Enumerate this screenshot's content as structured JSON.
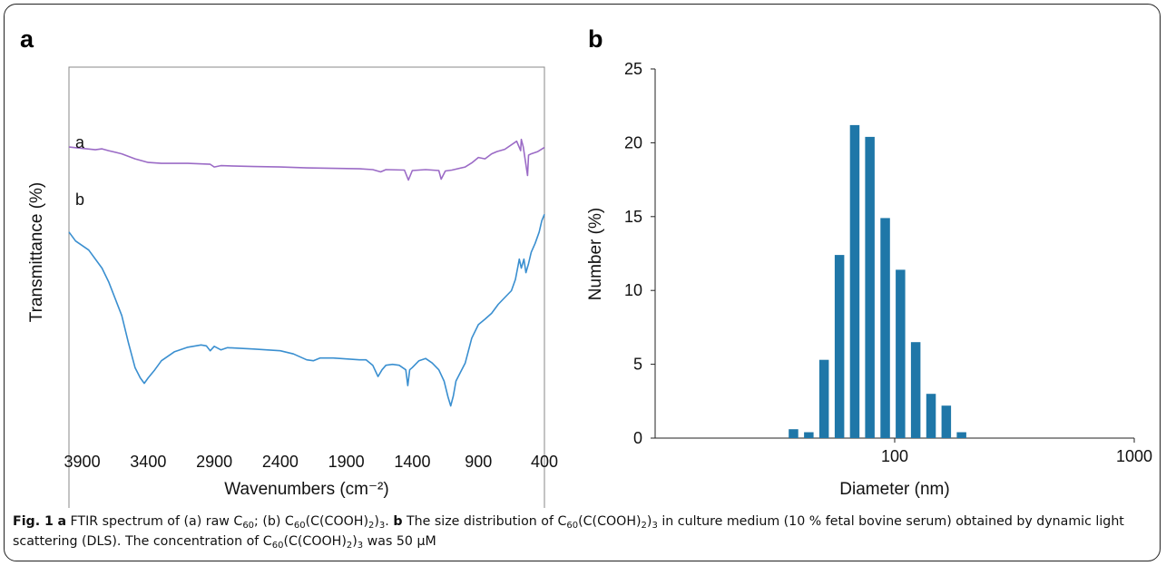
{
  "chart_data": [
    {
      "panel": "a",
      "type": "line",
      "xlabel": "Wavenumbers (cm⁻²)",
      "ylabel": "Transmittance (%)",
      "xlim": [
        4000,
        400
      ],
      "x_reversed": true,
      "x_ticks": [
        3900,
        3400,
        2900,
        2400,
        1900,
        1400,
        900,
        400
      ],
      "y_tick_labels": false,
      "grid": false,
      "series": [
        {
          "name": "a",
          "color": "#9b6bc6",
          "points": [
            [
              4000,
              0.823
            ],
            [
              3900,
              0.82
            ],
            [
              3800,
              0.817
            ],
            [
              3750,
              0.819
            ],
            [
              3700,
              0.815
            ],
            [
              3600,
              0.808
            ],
            [
              3500,
              0.797
            ],
            [
              3400,
              0.789
            ],
            [
              3300,
              0.787
            ],
            [
              3100,
              0.787
            ],
            [
              2930,
              0.785
            ],
            [
              2900,
              0.779
            ],
            [
              2850,
              0.782
            ],
            [
              2600,
              0.78
            ],
            [
              2400,
              0.779
            ],
            [
              2200,
              0.777
            ],
            [
              2000,
              0.776
            ],
            [
              1800,
              0.775
            ],
            [
              1700,
              0.773
            ],
            [
              1640,
              0.768
            ],
            [
              1600,
              0.773
            ],
            [
              1460,
              0.772
            ],
            [
              1430,
              0.75
            ],
            [
              1400,
              0.771
            ],
            [
              1300,
              0.773
            ],
            [
              1200,
              0.771
            ],
            [
              1182,
              0.752
            ],
            [
              1150,
              0.77
            ],
            [
              1100,
              0.772
            ],
            [
              1000,
              0.779
            ],
            [
              950,
              0.788
            ],
            [
              900,
              0.8
            ],
            [
              850,
              0.797
            ],
            [
              800,
              0.808
            ],
            [
              760,
              0.813
            ],
            [
              700,
              0.818
            ],
            [
              610,
              0.836
            ],
            [
              580,
              0.815
            ],
            [
              575,
              0.84
            ],
            [
              560,
              0.823
            ],
            [
              528,
              0.76
            ],
            [
              520,
              0.805
            ],
            [
              500,
              0.808
            ],
            [
              450,
              0.813
            ],
            [
              400,
              0.822
            ]
          ]
        },
        {
          "name": "b",
          "color": "#3a8fd0",
          "points": [
            [
              4000,
              0.635
            ],
            [
              3950,
              0.615
            ],
            [
              3850,
              0.595
            ],
            [
              3750,
              0.555
            ],
            [
              3700,
              0.525
            ],
            [
              3600,
              0.45
            ],
            [
              3550,
              0.39
            ],
            [
              3500,
              0.335
            ],
            [
              3460,
              0.312
            ],
            [
              3430,
              0.3
            ],
            [
              3400,
              0.312
            ],
            [
              3350,
              0.33
            ],
            [
              3300,
              0.35
            ],
            [
              3200,
              0.37
            ],
            [
              3100,
              0.38
            ],
            [
              3000,
              0.385
            ],
            [
              2960,
              0.383
            ],
            [
              2930,
              0.372
            ],
            [
              2900,
              0.382
            ],
            [
              2850,
              0.374
            ],
            [
              2800,
              0.379
            ],
            [
              2600,
              0.376
            ],
            [
              2400,
              0.372
            ],
            [
              2300,
              0.365
            ],
            [
              2200,
              0.352
            ],
            [
              2150,
              0.35
            ],
            [
              2100,
              0.356
            ],
            [
              2000,
              0.356
            ],
            [
              1900,
              0.354
            ],
            [
              1800,
              0.352
            ],
            [
              1750,
              0.352
            ],
            [
              1700,
              0.34
            ],
            [
              1660,
              0.315
            ],
            [
              1630,
              0.33
            ],
            [
              1600,
              0.34
            ],
            [
              1550,
              0.342
            ],
            [
              1500,
              0.34
            ],
            [
              1450,
              0.33
            ],
            [
              1435,
              0.295
            ],
            [
              1420,
              0.33
            ],
            [
              1400,
              0.335
            ],
            [
              1350,
              0.35
            ],
            [
              1300,
              0.355
            ],
            [
              1250,
              0.345
            ],
            [
              1200,
              0.33
            ],
            [
              1160,
              0.305
            ],
            [
              1130,
              0.27
            ],
            [
              1110,
              0.25
            ],
            [
              1090,
              0.272
            ],
            [
              1070,
              0.305
            ],
            [
              1000,
              0.345
            ],
            [
              950,
              0.4
            ],
            [
              900,
              0.43
            ],
            [
              850,
              0.442
            ],
            [
              800,
              0.455
            ],
            [
              750,
              0.475
            ],
            [
              700,
              0.49
            ],
            [
              650,
              0.505
            ],
            [
              620,
              0.53
            ],
            [
              600,
              0.56
            ],
            [
              590,
              0.575
            ],
            [
              575,
              0.555
            ],
            [
              555,
              0.575
            ],
            [
              540,
              0.545
            ],
            [
              520,
              0.565
            ],
            [
              500,
              0.59
            ],
            [
              470,
              0.61
            ],
            [
              440,
              0.635
            ],
            [
              420,
              0.66
            ],
            [
              400,
              0.674
            ]
          ]
        }
      ]
    },
    {
      "panel": "b",
      "type": "bar",
      "xlabel": "Diameter (nm)",
      "ylabel": "Number (%)",
      "x_scale": "log",
      "xlim": [
        10,
        1000
      ],
      "x_ticks": [
        "100",
        "1000"
      ],
      "ylim": [
        0,
        25
      ],
      "y_ticks": [
        0,
        5,
        10,
        15,
        20,
        25
      ],
      "grid": false,
      "bar_color": "#1f77a8",
      "categories": [
        37.8,
        43.8,
        50.7,
        58.8,
        68.1,
        78.8,
        91.3,
        105.7,
        122.4,
        141.8,
        164.2,
        190.1
      ],
      "values": [
        0.6,
        0.4,
        5.3,
        12.4,
        21.2,
        20.4,
        14.9,
        11.4,
        6.5,
        3.0,
        2.2,
        0.4
      ]
    }
  ],
  "panels": {
    "a": {
      "letter": "a",
      "curve_labels": [
        "a",
        "b"
      ]
    },
    "b": {
      "letter": "b"
    }
  },
  "caption": {
    "fig_label": "Fig. 1",
    "part_a_letter": "a",
    "part_a_text": " FTIR spectrum of (a) raw C60; (b) C60(C(COOH)2)3.",
    "part_b_letter": "b",
    "part_b_text": " The size distribution of C60(C(COOH)2)3 in culture medium (10 % fetal bovine serum) obtained by dynamic light scattering (DLS). The concentration of C60(C(COOH)2)3 was 50 μM"
  },
  "colors": {
    "frame": "#222222",
    "text": "#111111"
  }
}
